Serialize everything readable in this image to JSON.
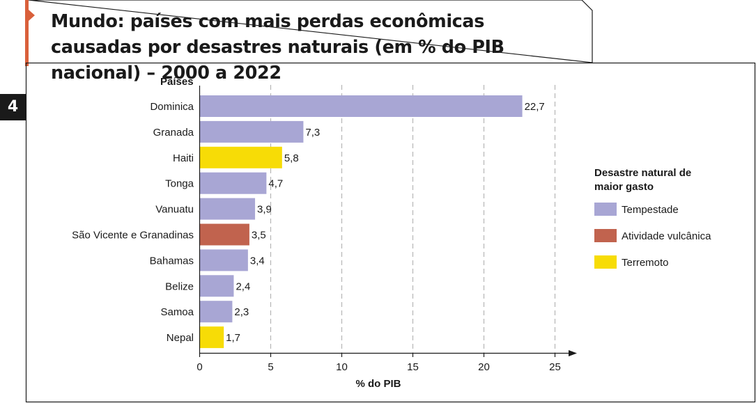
{
  "title": "Mundo: países com mais perdas econômicas causadas por desastres naturais (em % do PIB nacional) – 2000 a 2022",
  "badge": "4",
  "colors": {
    "tempestade": "#a8a6d4",
    "atividade_vulcanica": "#c1634e",
    "terremoto": "#f7dc06",
    "accent": "#d9603b"
  },
  "chart_data": {
    "type": "bar",
    "orientation": "horizontal",
    "ylabel": "Países",
    "xlabel": "% do PIB",
    "xlim": [
      0,
      25
    ],
    "xticks": [
      0,
      5,
      10,
      15,
      20,
      25
    ],
    "grid": "vertical-dashed",
    "categories": [
      "Dominica",
      "Granada",
      "Haiti",
      "Tonga",
      "Vanuatu",
      "São Vicente e Granadinas",
      "Bahamas",
      "Belize",
      "Samoa",
      "Nepal"
    ],
    "values": [
      22.7,
      7.3,
      5.8,
      4.7,
      3.9,
      3.5,
      3.4,
      2.4,
      2.3,
      1.7
    ],
    "value_labels": [
      "22,7",
      "7,3",
      "5,8",
      "4,7",
      "3,9",
      "3,5",
      "3,4",
      "2,4",
      "2,3",
      "1,7"
    ],
    "disaster": [
      "tempestade",
      "tempestade",
      "terremoto",
      "tempestade",
      "tempestade",
      "atividade_vulcanica",
      "tempestade",
      "tempestade",
      "tempestade",
      "terremoto"
    ],
    "legend": {
      "title_line1": "Desastre natural de",
      "title_line2": "maior gasto",
      "placement": "right",
      "items": [
        {
          "key": "tempestade",
          "label": "Tempestade"
        },
        {
          "key": "atividade_vulcanica",
          "label": "Atividade vulcânica"
        },
        {
          "key": "terremoto",
          "label": "Terremoto"
        }
      ]
    }
  }
}
